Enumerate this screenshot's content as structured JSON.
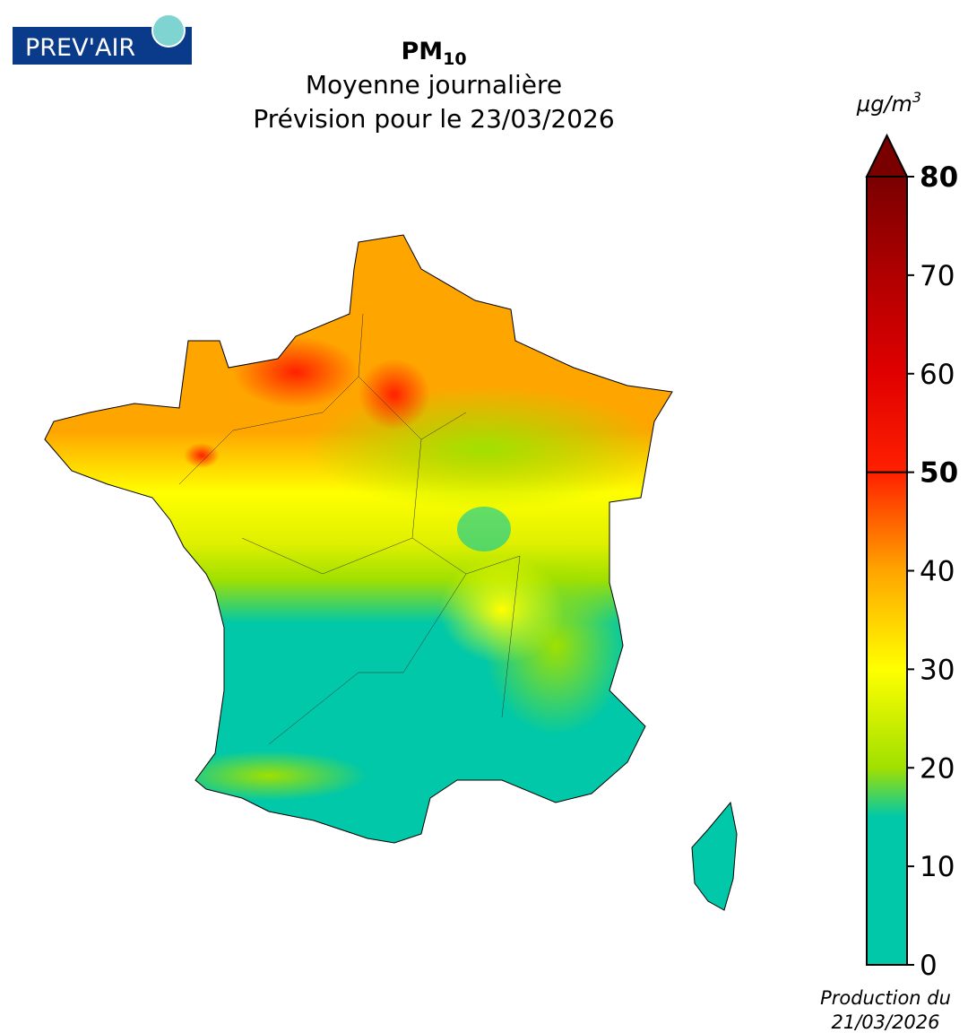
{
  "logo": "PREV'AIR",
  "title": {
    "main": "PM",
    "sub": "10"
  },
  "subtitle": [
    "Moyenne journalière",
    "Prévision pour le 23/03/2026"
  ],
  "colorbar": {
    "unit": {
      "base": "μg/m",
      "sup": "3"
    },
    "lim": [
      0,
      80
    ],
    "ticks": [
      0,
      10,
      20,
      30,
      40,
      50,
      60,
      70,
      80
    ],
    "bold_ticks": [
      50,
      80
    ],
    "threshold": 50,
    "stops": [
      {
        "value": 0,
        "color": "#00c8a8"
      },
      {
        "value": 15,
        "color": "#00c8a8"
      },
      {
        "value": 20,
        "color": "#a0e000"
      },
      {
        "value": 30,
        "color": "#ffff00"
      },
      {
        "value": 40,
        "color": "#ffa500"
      },
      {
        "value": 50,
        "color": "#ff2000"
      },
      {
        "value": 60,
        "color": "#e00000"
      },
      {
        "value": 70,
        "color": "#b00000"
      },
      {
        "value": 80,
        "color": "#7a0000"
      }
    ],
    "over_color": "#7a0000"
  },
  "footer": [
    "Production du",
    "21/03/2026"
  ]
}
